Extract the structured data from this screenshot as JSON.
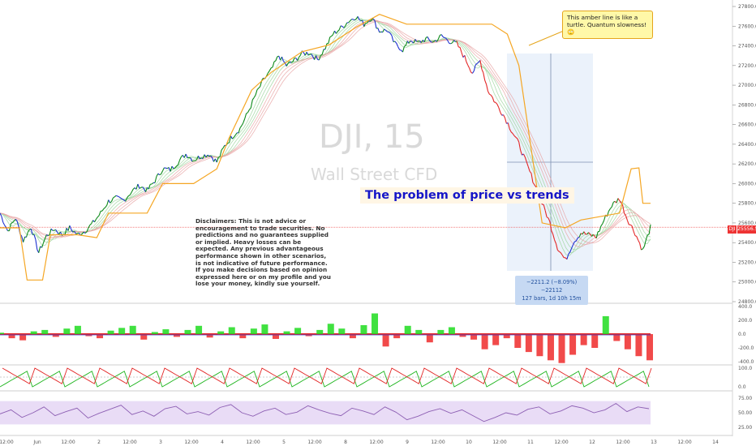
{
  "chart_data": {
    "type": "line",
    "symbol_watermark": "DJI, 15",
    "subtitle_watermark": "Wall Street CFD",
    "headline": "The problem of price vs trends",
    "callout": "This amber line is like a turtle. Quantum slowness! 🙄",
    "disclaimer": "Disclaimers: This is not advice or encouragement to trade securities. No predictions and no guarantees supplied or implied. Heavy losses can be expected. Any previous advantageous performance shown in other scenarios, is not indicative of future performance.  If you make decisions based on opinion expressed here or on my profile and you lose your money, kindly sue yourself.",
    "measurement_line1": "−2211.2 (−8.09%) −22112",
    "measurement_line2": "127 bars, 1d 10h 15m",
    "last_price": "25556.5",
    "last_price_label": "DJI",
    "y_ticks": [
      "27800.0",
      "27600.0",
      "27400.0",
      "27200.0",
      "27000.0",
      "26800.0",
      "26600.0",
      "26400.0",
      "26200.0",
      "26000.0",
      "25800.0",
      "25600.0",
      "25400.0",
      "25200.0",
      "25000.0",
      "24800.0"
    ],
    "ylim": [
      24800,
      27800
    ],
    "osc1_ticks": [
      "400.0",
      "200.0",
      "0.0",
      "-200.0",
      "-400.0"
    ],
    "osc2_ticks": [
      "100.0",
      "0.0"
    ],
    "osc3_ticks": [
      "75.00",
      "50.00",
      "25.00"
    ],
    "x_ticks": [
      "12:00",
      "Jun",
      "12:00",
      "2",
      "12:00",
      "3",
      "12:00",
      "4",
      "12:00",
      "5",
      "12:00",
      "8",
      "12:00",
      "9",
      "12:00",
      "10",
      "12:00",
      "11",
      "12:00",
      "12",
      "12:00",
      "13",
      "12:00",
      "14"
    ],
    "price_keypoints": [
      [
        0,
        25700
      ],
      [
        4,
        25520
      ],
      [
        8,
        25650
      ],
      [
        12,
        25420
      ],
      [
        16,
        25560
      ],
      [
        20,
        25300
      ],
      [
        24,
        25470
      ],
      [
        28,
        25540
      ],
      [
        32,
        25480
      ],
      [
        36,
        25550
      ],
      [
        40,
        25480
      ],
      [
        44,
        25520
      ],
      [
        48,
        25600
      ],
      [
        52,
        25700
      ],
      [
        56,
        25820
      ],
      [
        60,
        25850
      ],
      [
        64,
        25830
      ],
      [
        68,
        25920
      ],
      [
        72,
        25980
      ],
      [
        76,
        25930
      ],
      [
        80,
        26030
      ],
      [
        84,
        26150
      ],
      [
        88,
        26140
      ],
      [
        92,
        26220
      ],
      [
        96,
        26300
      ],
      [
        100,
        26240
      ],
      [
        104,
        26280
      ],
      [
        108,
        26300
      ],
      [
        112,
        26220
      ],
      [
        116,
        26380
      ],
      [
        120,
        26480
      ],
      [
        124,
        26560
      ],
      [
        128,
        26720
      ],
      [
        132,
        26900
      ],
      [
        136,
        27050
      ],
      [
        140,
        27150
      ],
      [
        144,
        27300
      ],
      [
        148,
        27200
      ],
      [
        152,
        27250
      ],
      [
        156,
        27320
      ],
      [
        160,
        27330
      ],
      [
        164,
        27260
      ],
      [
        168,
        27380
      ],
      [
        172,
        27520
      ],
      [
        176,
        27580
      ],
      [
        180,
        27650
      ],
      [
        184,
        27700
      ],
      [
        188,
        27620
      ],
      [
        192,
        27690
      ],
      [
        196,
        27550
      ],
      [
        200,
        27560
      ],
      [
        204,
        27420
      ],
      [
        208,
        27360
      ],
      [
        212,
        27460
      ],
      [
        216,
        27430
      ],
      [
        220,
        27470
      ],
      [
        224,
        27440
      ],
      [
        228,
        27500
      ],
      [
        232,
        27450
      ],
      [
        236,
        27420
      ],
      [
        240,
        27280
      ],
      [
        244,
        27130
      ],
      [
        248,
        27250
      ],
      [
        252,
        26950
      ],
      [
        256,
        26820
      ],
      [
        260,
        26700
      ],
      [
        264,
        26550
      ],
      [
        268,
        26400
      ],
      [
        272,
        26200
      ],
      [
        276,
        26000
      ],
      [
        280,
        25800
      ],
      [
        284,
        25600
      ],
      [
        288,
        25350
      ],
      [
        292,
        25220
      ],
      [
        296,
        25400
      ],
      [
        300,
        25500
      ],
      [
        304,
        25480
      ],
      [
        308,
        25460
      ],
      [
        312,
        25630
      ],
      [
        316,
        25780
      ],
      [
        320,
        25850
      ],
      [
        324,
        25640
      ],
      [
        328,
        25500
      ],
      [
        332,
        25320
      ],
      [
        336,
        25556.5
      ]
    ],
    "amber_keypoints": [
      [
        0,
        25550
      ],
      [
        10,
        25550
      ],
      [
        14,
        25020
      ],
      [
        22,
        25020
      ],
      [
        26,
        25480
      ],
      [
        40,
        25480
      ],
      [
        50,
        25450
      ],
      [
        56,
        25700
      ],
      [
        76,
        25700
      ],
      [
        84,
        26000
      ],
      [
        100,
        26000
      ],
      [
        112,
        26150
      ],
      [
        118,
        26450
      ],
      [
        124,
        26700
      ],
      [
        130,
        26950
      ],
      [
        140,
        27130
      ],
      [
        156,
        27340
      ],
      [
        170,
        27410
      ],
      [
        184,
        27590
      ],
      [
        196,
        27720
      ],
      [
        210,
        27620
      ],
      [
        230,
        27620
      ],
      [
        254,
        27620
      ],
      [
        262,
        27520
      ],
      [
        268,
        27200
      ],
      [
        280,
        25600
      ],
      [
        292,
        25550
      ],
      [
        300,
        25630
      ],
      [
        320,
        25700
      ],
      [
        326,
        26150
      ],
      [
        330,
        26160
      ],
      [
        332,
        25800
      ],
      [
        336,
        25800
      ]
    ],
    "osc1_values": [
      20,
      -60,
      -90,
      40,
      60,
      -40,
      80,
      120,
      -30,
      -60,
      50,
      90,
      120,
      -80,
      30,
      70,
      -40,
      60,
      120,
      -50,
      40,
      100,
      -60,
      80,
      140,
      -70,
      40,
      90,
      -30,
      60,
      150,
      80,
      -60,
      130,
      300,
      -180,
      -60,
      120,
      60,
      -120,
      60,
      100,
      -40,
      -80,
      -220,
      -160,
      -60,
      -200,
      -260,
      -320,
      -380,
      -420,
      -300,
      -160,
      -200,
      260,
      -100,
      -220,
      -320,
      -380
    ],
    "rsi_values": [
      48,
      55,
      42,
      50,
      60,
      45,
      52,
      58,
      41,
      49,
      56,
      63,
      47,
      53,
      44,
      57,
      61,
      48,
      52,
      46,
      59,
      64,
      50,
      44,
      53,
      58,
      47,
      51,
      62,
      55,
      49,
      45,
      58,
      53,
      47,
      60,
      51,
      38,
      44,
      52,
      57,
      49,
      55,
      45,
      35,
      42,
      50,
      46,
      56,
      60,
      48,
      53,
      62,
      58,
      50,
      55,
      66,
      52,
      60,
      57
    ]
  }
}
